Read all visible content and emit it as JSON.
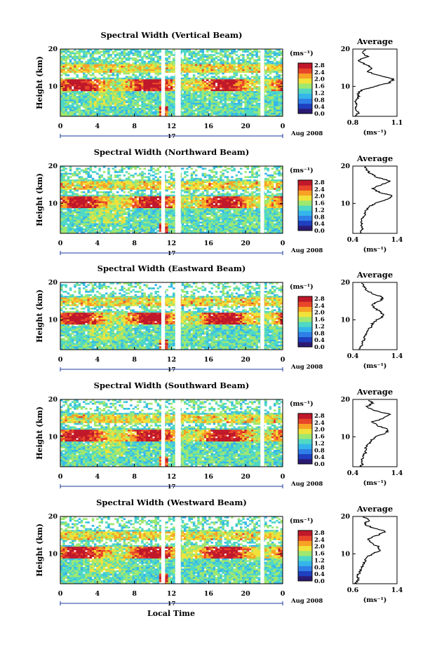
{
  "figure": {
    "xlabel": "Local Time",
    "ylabel": "Height (km)",
    "day_label": "17",
    "month_label": "Aug 2008",
    "unit_label": "(ms⁻¹)",
    "average_title": "Average",
    "average_xlabel": "(ms⁻¹)"
  },
  "chart_data": [
    {
      "type": "heatmap",
      "title": "Spectral Width (Vertical Beam)",
      "x_ticks": [
        "0",
        "4",
        "8",
        "12",
        "16",
        "20",
        "0"
      ],
      "y_ticks": [
        "20",
        "10"
      ],
      "xlim": [
        0,
        24
      ],
      "ylim": [
        2,
        20
      ],
      "colorbar_ticks": [
        "2.8",
        "2.4",
        "2.0",
        "1.6",
        "1.2",
        "0.8",
        "0.4",
        "0.0"
      ],
      "data_gaps": [
        [
          10.9,
          11.3
        ],
        [
          12.4,
          13.0
        ],
        [
          21.6,
          22.0
        ]
      ],
      "average_profile": {
        "xlim": [
          0.8,
          1.1
        ],
        "x_ticks": [
          "0.8",
          "1.1"
        ],
        "y_ticks": [
          "20",
          "10"
        ],
        "heights": [
          2,
          3,
          4,
          5,
          6,
          7,
          8,
          9,
          10,
          11,
          12,
          13,
          14,
          15,
          16,
          17,
          18,
          19,
          20
        ],
        "values": [
          0.82,
          0.84,
          0.81,
          0.83,
          0.82,
          0.84,
          0.83,
          0.86,
          0.95,
          1.05,
          1.08,
          0.97,
          0.9,
          0.93,
          0.88,
          0.84,
          0.9,
          0.86,
          0.9
        ]
      }
    },
    {
      "type": "heatmap",
      "title": "Spectral Width (Northward Beam)",
      "x_ticks": [
        "0",
        "4",
        "8",
        "12",
        "16",
        "20",
        "0"
      ],
      "y_ticks": [
        "20",
        "10"
      ],
      "xlim": [
        0,
        24
      ],
      "ylim": [
        2,
        20
      ],
      "colorbar_ticks": [
        "2.8",
        "2.4",
        "2.0",
        "1.6",
        "1.2",
        "0.8",
        "0.4",
        "0.0"
      ],
      "data_gaps": [
        [
          10.9,
          11.3
        ],
        [
          12.4,
          13.0
        ],
        [
          21.6,
          22.0
        ]
      ],
      "average_profile": {
        "xlim": [
          0.4,
          1.4
        ],
        "x_ticks": [
          "0.4",
          "1.4"
        ],
        "y_ticks": [
          "20",
          "10"
        ],
        "heights": [
          2,
          3,
          4,
          5,
          6,
          7,
          8,
          9,
          10,
          11,
          12,
          13,
          14,
          15,
          16,
          17,
          18,
          19,
          20
        ],
        "values": [
          0.55,
          0.62,
          0.58,
          0.6,
          0.6,
          0.66,
          0.7,
          0.75,
          0.9,
          1.15,
          1.3,
          1.0,
          0.85,
          1.05,
          1.25,
          0.95,
          0.8,
          0.72,
          0.68
        ]
      }
    },
    {
      "type": "heatmap",
      "title": "Spectral Width (Eastward Beam)",
      "x_ticks": [
        "0",
        "4",
        "8",
        "12",
        "16",
        "20",
        "0"
      ],
      "y_ticks": [
        "20",
        "10"
      ],
      "xlim": [
        0,
        24
      ],
      "ylim": [
        2,
        20
      ],
      "colorbar_ticks": [
        "2.8",
        "2.4",
        "2.0",
        "1.6",
        "1.2",
        "0.8",
        "0.4",
        "0.0"
      ],
      "data_gaps": [
        [
          10.9,
          11.3
        ],
        [
          12.4,
          13.0
        ],
        [
          21.6,
          22.0
        ]
      ],
      "average_profile": {
        "xlim": [
          0.4,
          1.4
        ],
        "x_ticks": [
          "0.4",
          "1.4"
        ],
        "y_ticks": [
          "20",
          "10"
        ],
        "heights": [
          2,
          3,
          4,
          5,
          6,
          7,
          8,
          9,
          10,
          11,
          12,
          13,
          14,
          15,
          16,
          17,
          18,
          19,
          20
        ],
        "values": [
          0.55,
          0.6,
          0.62,
          0.66,
          0.68,
          0.72,
          0.8,
          0.85,
          0.95,
          1.1,
          1.05,
          0.9,
          0.82,
          1.0,
          1.1,
          0.85,
          0.7,
          0.65,
          0.62
        ]
      }
    },
    {
      "type": "heatmap",
      "title": "Spectral Width (Southward Beam)",
      "x_ticks": [
        "0",
        "4",
        "8",
        "12",
        "16",
        "20",
        "0"
      ],
      "y_ticks": [
        "20",
        "10"
      ],
      "xlim": [
        0,
        24
      ],
      "ylim": [
        2,
        20
      ],
      "colorbar_ticks": [
        "2.8",
        "2.4",
        "2.0",
        "1.6",
        "1.2",
        "0.8",
        "0.4",
        "0.0"
      ],
      "data_gaps": [
        [
          10.9,
          11.3
        ],
        [
          12.4,
          13.0
        ],
        [
          21.6,
          22.0
        ]
      ],
      "average_profile": {
        "xlim": [
          0.4,
          1.4
        ],
        "x_ticks": [
          "0.4",
          "1.4"
        ],
        "y_ticks": [
          "20",
          "10"
        ],
        "heights": [
          2,
          3,
          4,
          5,
          6,
          7,
          8,
          9,
          10,
          11,
          12,
          13,
          14,
          15,
          16,
          17,
          18,
          19,
          20
        ],
        "values": [
          0.58,
          0.62,
          0.6,
          0.65,
          0.7,
          0.68,
          0.75,
          0.8,
          0.92,
          1.15,
          1.2,
          0.95,
          0.85,
          1.1,
          1.25,
          0.9,
          0.7,
          0.85,
          0.75
        ]
      }
    },
    {
      "type": "heatmap",
      "title": "Spectral Width (Westward Beam)",
      "x_ticks": [
        "0",
        "4",
        "8",
        "12",
        "16",
        "20",
        "0"
      ],
      "y_ticks": [
        "20",
        "10"
      ],
      "xlim": [
        0,
        24
      ],
      "ylim": [
        2,
        20
      ],
      "colorbar_ticks": [
        "2.8",
        "2.4",
        "2.0",
        "1.6",
        "1.2",
        "0.8",
        "0.4",
        "0.0"
      ],
      "data_gaps": [
        [
          10.9,
          11.3
        ],
        [
          12.4,
          13.0
        ],
        [
          21.6,
          22.0
        ]
      ],
      "average_profile": {
        "xlim": [
          0.6,
          1.4
        ],
        "x_ticks": [
          "0.6",
          "1.4"
        ],
        "y_ticks": [
          "20",
          "10"
        ],
        "heights": [
          2,
          3,
          4,
          5,
          6,
          7,
          8,
          9,
          10,
          11,
          12,
          13,
          14,
          15,
          16,
          17,
          18,
          19,
          20
        ],
        "values": [
          0.65,
          0.7,
          0.68,
          0.72,
          0.75,
          0.78,
          0.82,
          0.85,
          0.95,
          1.1,
          1.05,
          0.92,
          0.88,
          1.05,
          1.2,
          0.95,
          0.8,
          0.9,
          0.78
        ]
      }
    }
  ],
  "colors": {
    "colormap": [
      "#2b1a73",
      "#1e3fbf",
      "#2f7fe8",
      "#35b6ea",
      "#4fd8c6",
      "#9fe870",
      "#f0e23a",
      "#f7a225",
      "#e8452a",
      "#c0182a"
    ]
  }
}
